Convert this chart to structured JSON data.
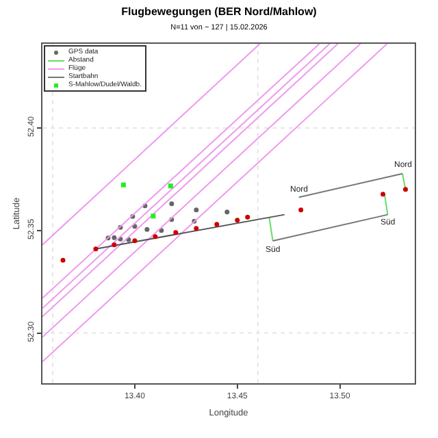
{
  "chart_data": {
    "type": "scatter",
    "title": "Flugbewegungen (BER Nord/Mahlow)",
    "subtitle": "N=11 von ~ 127 | 15.02.2026",
    "xlabel": "Longitude",
    "ylabel": "Latitude",
    "xlim": [
      13.355,
      13.5365
    ],
    "ylim": [
      52.2755,
      52.441
    ],
    "xticks": [
      {
        "value": 13.4,
        "label": "13.40"
      },
      {
        "value": 13.45,
        "label": "13.45"
      },
      {
        "value": 13.5,
        "label": "13.50"
      }
    ],
    "yticks": [
      {
        "value": 52.3,
        "label": "52.30"
      },
      {
        "value": 52.35,
        "label": "52.35"
      },
      {
        "value": 52.4,
        "label": "52.40"
      }
    ],
    "grid": false,
    "legend": "top left",
    "ref_lines": [
      {
        "axis": "x",
        "value": 13.36,
        "color": "#e6e6e6",
        "line_style": "dotted"
      },
      {
        "axis": "x",
        "value": 13.46,
        "color": "#e6e6e6",
        "line_style": "dotted"
      },
      {
        "axis": "y",
        "value": 52.3,
        "color": "#e6e6e6",
        "line_style": "dotted"
      },
      {
        "axis": "y",
        "value": 52.4,
        "color": "#e6e6e6",
        "line_style": "dotted"
      }
    ],
    "series": [
      {
        "name": "GPS data",
        "color": "#666666",
        "marker": "circle",
        "x": [
          13.387,
          13.393,
          13.399,
          13.405,
          13.39,
          13.4,
          13.409,
          13.418,
          13.393,
          13.406,
          13.418,
          13.43,
          13.397,
          13.413,
          13.429,
          13.445
        ],
        "values": [
          52.3463,
          52.3515,
          52.3568,
          52.362,
          52.3465,
          52.352,
          null,
          52.363,
          52.3458,
          52.3505,
          52.3553,
          52.36,
          52.3455,
          52.35,
          52.3545,
          52.359
        ]
      },
      {
        "name": "Abstand",
        "type": "line",
        "color": "#66dd66",
        "line_style": "solid",
        "x": [
          13.4656,
          13.4673
        ],
        "values": [
          52.3562,
          52.3449
        ]
      },
      {
        "type": "line",
        "color": "#66dd66",
        "line_style": "solid",
        "x": [
          13.5218,
          13.5233
        ],
        "values": [
          52.3677,
          52.3577
        ]
      },
      {
        "type": "line",
        "color": "#66dd66",
        "line_style": "solid",
        "x": [
          13.5305,
          13.532
        ],
        "values": [
          52.3777,
          52.37
        ]
      },
      {
        "name": "Flüge",
        "type": "line",
        "color": "#ee99ee",
        "line_style": "solid",
        "x": [
          13.355,
          13.461
        ],
        "values": [
          52.343,
          52.441
        ]
      },
      {
        "type": "line",
        "color": "#ee99ee",
        "line_style": "solid",
        "x": [
          13.355,
          13.49
        ],
        "values": [
          52.317,
          52.441
        ]
      },
      {
        "type": "line",
        "color": "#ee99ee",
        "line_style": "solid",
        "x": [
          13.355,
          13.495
        ],
        "values": [
          52.312,
          52.441
        ]
      },
      {
        "type": "line",
        "color": "#ee99ee",
        "line_style": "solid",
        "x": [
          13.355,
          13.499
        ],
        "values": [
          52.308,
          52.441
        ]
      },
      {
        "type": "line",
        "color": "#ee99ee",
        "line_style": "solid",
        "x": [
          13.355,
          13.51
        ],
        "values": [
          52.298,
          52.441
        ]
      },
      {
        "type": "line",
        "color": "#ee99ee",
        "line_style": "solid",
        "x": [
          13.355,
          13.523
        ],
        "values": [
          52.286,
          52.441
        ]
      },
      {
        "name": "Startbahn",
        "type": "line",
        "color": "#777777",
        "line_style": "solid",
        "x": [
          13.48,
          13.5305
        ],
        "values": [
          52.3662,
          52.3777
        ]
      },
      {
        "type": "line",
        "color": "#777777",
        "line_style": "solid",
        "x": [
          13.4673,
          13.5233
        ],
        "values": [
          52.3449,
          52.3577
        ]
      },
      {
        "type": "line",
        "color": "#555555",
        "line_style": "solid",
        "x": [
          13.381,
          13.473
        ],
        "values": [
          52.341,
          52.3577
        ]
      },
      {
        "type": "scatter",
        "color": "#cc0000",
        "marker": "circle",
        "x": [
          13.365,
          13.381,
          13.39,
          13.4,
          13.41,
          13.42,
          13.43,
          13.44,
          13.45,
          13.455,
          13.481,
          13.521,
          13.532
        ],
        "values": [
          52.3355,
          52.341,
          52.343,
          52.345,
          52.347,
          52.349,
          52.351,
          52.353,
          52.355,
          52.3565,
          52.36,
          52.3677,
          52.37
        ]
      },
      {
        "name": "S-Mahlow/Dudel/Waldb.",
        "type": "scatter",
        "color": "#22ee22",
        "marker": "square",
        "x": [
          13.3945,
          13.4175,
          13.409
        ],
        "values": [
          52.3722,
          52.3717,
          52.357
        ]
      }
    ],
    "annotations": [
      {
        "text": "Nord",
        "x": 13.48,
        "y": 52.3662
      },
      {
        "text": "Nord",
        "x": 13.5305,
        "y": 52.3777
      },
      {
        "text": "Süd",
        "x": 13.4673,
        "y": 52.3449
      },
      {
        "text": "Süd",
        "x": 13.5233,
        "y": 52.3577
      }
    ]
  }
}
